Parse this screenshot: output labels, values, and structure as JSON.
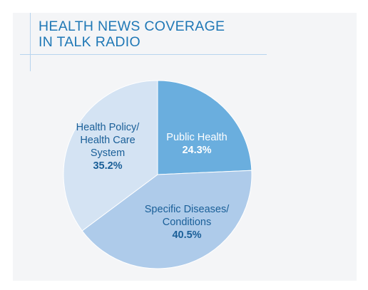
{
  "title_lines": [
    "HEALTH NEWS COVERAGE",
    "IN TALK RADIO"
  ],
  "chart_data": {
    "type": "pie",
    "title": "HEALTH NEWS COVERAGE IN TALK RADIO",
    "slices": [
      {
        "label": "Public Health",
        "label_lines": [
          "Public Health"
        ],
        "value": 24.3,
        "value_label": "24.3%",
        "color": "#6aaede",
        "label_color": "#ffffff"
      },
      {
        "label": "Specific Diseases/ Conditions",
        "label_lines": [
          "Specific Diseases/",
          "Conditions"
        ],
        "value": 40.5,
        "value_label": "40.5%",
        "color": "#aecbea",
        "label_color": "#1a5f98"
      },
      {
        "label": "Health Policy/ Health Care System",
        "label_lines": [
          "Health Policy/",
          "Health Care",
          "System"
        ],
        "value": 35.2,
        "value_label": "35.2%",
        "color": "#d4e3f3",
        "label_color": "#1a5f98"
      }
    ]
  },
  "colors": {
    "title": "#1f78b6",
    "panel": "#f4f5f7",
    "rule": "#b7d4ee",
    "slice_border": "#ffffff"
  }
}
